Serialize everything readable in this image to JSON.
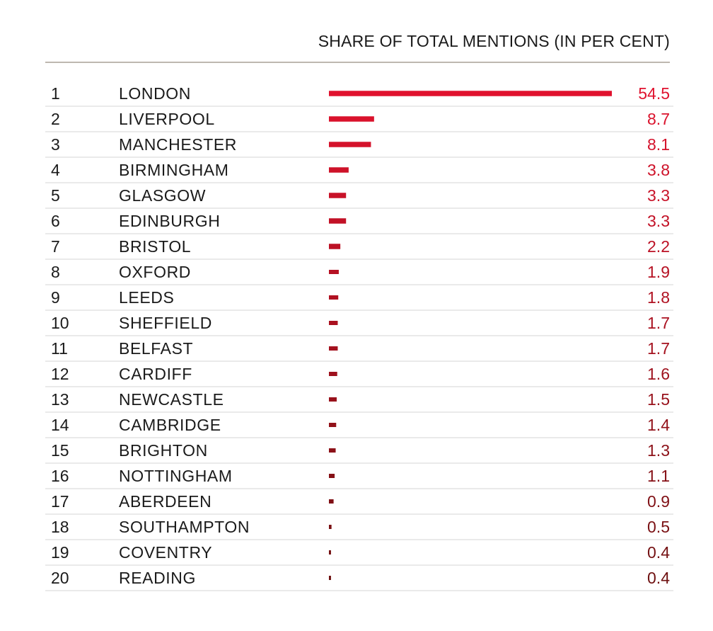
{
  "chart_data": {
    "type": "bar",
    "title": "SHARE OF TOTAL MENTIONS (IN PER CENT)",
    "orientation": "horizontal",
    "xlim": [
      0,
      54.5
    ],
    "grid": false,
    "colors": {
      "bar_start": "#e0122e",
      "bar_end": "#6e1010",
      "text": "#1a1a1a",
      "header_rule": "#a8a095",
      "row_rule": "#d6d6d6"
    },
    "rows": [
      {
        "rank": "1",
        "city": "LONDON",
        "value": 54.5,
        "label": "54.5"
      },
      {
        "rank": "2",
        "city": "LIVERPOOL",
        "value": 8.7,
        "label": "8.7"
      },
      {
        "rank": "3",
        "city": "MANCHESTER",
        "value": 8.1,
        "label": "8.1"
      },
      {
        "rank": "4",
        "city": "BIRMINGHAM",
        "value": 3.8,
        "label": "3.8"
      },
      {
        "rank": "5",
        "city": "GLASGOW",
        "value": 3.3,
        "label": "3.3"
      },
      {
        "rank": "6",
        "city": "EDINBURGH",
        "value": 3.3,
        "label": "3.3"
      },
      {
        "rank": "7",
        "city": "BRISTOL",
        "value": 2.2,
        "label": "2.2"
      },
      {
        "rank": "8",
        "city": "OXFORD",
        "value": 1.9,
        "label": "1.9"
      },
      {
        "rank": "9",
        "city": "LEEDS",
        "value": 1.8,
        "label": "1.8"
      },
      {
        "rank": "10",
        "city": "SHEFFIELD",
        "value": 1.7,
        "label": "1.7"
      },
      {
        "rank": "11",
        "city": "BELFAST",
        "value": 1.7,
        "label": "1.7"
      },
      {
        "rank": "12",
        "city": "CARDIFF",
        "value": 1.6,
        "label": "1.6"
      },
      {
        "rank": "13",
        "city": "NEWCASTLE",
        "value": 1.5,
        "label": "1.5"
      },
      {
        "rank": "14",
        "city": "CAMBRIDGE",
        "value": 1.4,
        "label": "1.4"
      },
      {
        "rank": "15",
        "city": "BRIGHTON",
        "value": 1.3,
        "label": "1.3"
      },
      {
        "rank": "16",
        "city": "NOTTINGHAM",
        "value": 1.1,
        "label": "1.1"
      },
      {
        "rank": "17",
        "city": "ABERDEEN",
        "value": 0.9,
        "label": "0.9"
      },
      {
        "rank": "18",
        "city": "SOUTHAMPTON",
        "value": 0.5,
        "label": "0.5"
      },
      {
        "rank": "19",
        "city": "COVENTRY",
        "value": 0.4,
        "label": "0.4"
      },
      {
        "rank": "20",
        "city": "READING",
        "value": 0.4,
        "label": "0.4"
      }
    ]
  }
}
